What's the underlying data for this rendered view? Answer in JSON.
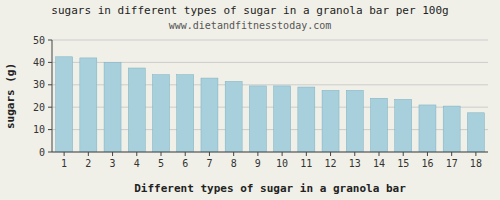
{
  "chart_data": {
    "type": "bar",
    "title": "sugars in different types of sugar in a granola bar per 100g",
    "subtitle": "www.dietandfitnesstoday.com",
    "xlabel": "Different types of sugar in a granola bar",
    "ylabel": "sugars (g)",
    "categories": [
      "1",
      "2",
      "3",
      "4",
      "5",
      "6",
      "7",
      "8",
      "9",
      "10",
      "11",
      "12",
      "13",
      "14",
      "15",
      "16",
      "17",
      "18"
    ],
    "values": [
      42.5,
      42.0,
      40.0,
      37.5,
      34.5,
      34.5,
      33.0,
      31.5,
      29.5,
      29.5,
      29.0,
      27.5,
      27.5,
      24.0,
      23.5,
      21.0,
      20.5,
      17.5
    ],
    "color": "#a8d0dc",
    "ylim": [
      0,
      50
    ],
    "yticks": [
      0,
      10,
      20,
      30,
      40,
      50
    ],
    "grid": true
  }
}
